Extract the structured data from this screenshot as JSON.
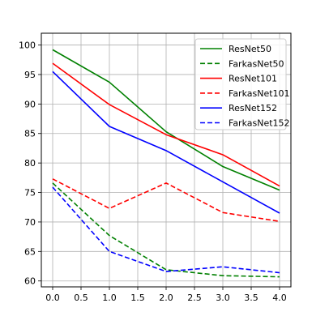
{
  "chart_data": {
    "type": "line",
    "x": [
      0.0,
      1.0,
      2.0,
      3.0,
      4.0
    ],
    "xlim": [
      -0.2,
      4.2
    ],
    "ylim": [
      59,
      102
    ],
    "xticks": [
      0.0,
      0.5,
      1.0,
      1.5,
      2.0,
      2.5,
      3.0,
      3.5,
      4.0
    ],
    "xtick_labels": [
      "0.0",
      "0.5",
      "1.0",
      "1.5",
      "2.0",
      "2.5",
      "3.0",
      "3.5",
      "4.0"
    ],
    "yticks": [
      60,
      65,
      70,
      75,
      80,
      85,
      90,
      95,
      100
    ],
    "ytick_labels": [
      "60",
      "65",
      "70",
      "75",
      "80",
      "85",
      "90",
      "95",
      "100"
    ],
    "grid": true,
    "legend_position": "top-right",
    "series": [
      {
        "name": "ResNet50",
        "color": "#008000",
        "dash": "solid",
        "values": [
          99.2,
          93.7,
          85.3,
          79.4,
          75.4
        ]
      },
      {
        "name": "FarkasNet50",
        "color": "#008000",
        "dash": "dashed",
        "values": [
          76.6,
          67.7,
          61.9,
          60.9,
          60.7
        ]
      },
      {
        "name": "ResNet101",
        "color": "#ff0000",
        "dash": "solid",
        "values": [
          96.9,
          89.9,
          84.8,
          81.4,
          76.1
        ]
      },
      {
        "name": "FarkasNet101",
        "color": "#ff0000",
        "dash": "dashed",
        "values": [
          77.3,
          72.3,
          76.6,
          71.6,
          70.1
        ]
      },
      {
        "name": "ResNet152",
        "color": "#0000ff",
        "dash": "solid",
        "values": [
          95.5,
          86.2,
          82.1,
          76.8,
          71.5
        ]
      },
      {
        "name": "FarkasNet152",
        "color": "#0000ff",
        "dash": "dashed",
        "values": [
          75.9,
          65.0,
          61.6,
          62.4,
          61.4
        ]
      }
    ]
  }
}
